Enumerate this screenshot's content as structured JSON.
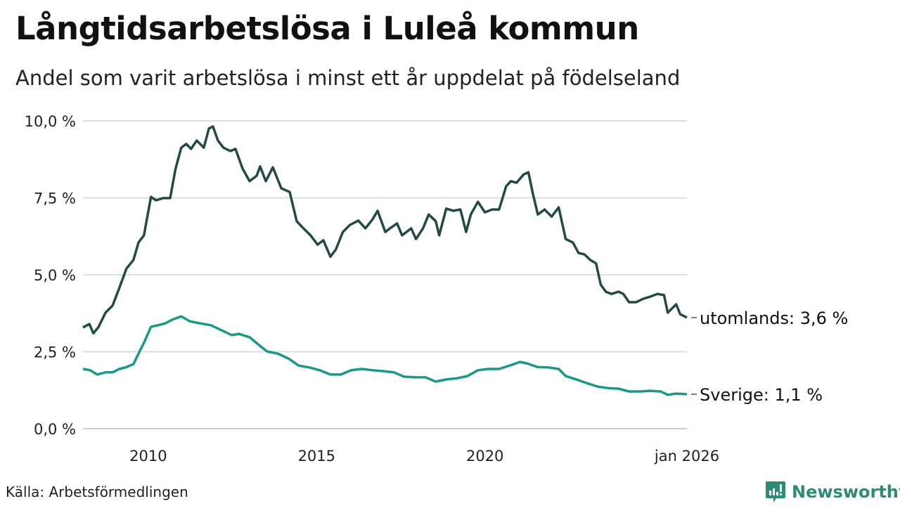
{
  "header": {
    "title": "Långtidsarbetslösa i Luleå kommun",
    "subtitle": "Andel som varit arbetslösa i minst ett år uppdelat på födelseland"
  },
  "footer": {
    "source": "Källa: Arbetsförmedlingen",
    "brand": "Newsworthy"
  },
  "chart_data": {
    "type": "line",
    "title": "Långtidsarbetslösa i Luleå kommun",
    "xlabel": "",
    "ylabel": "",
    "xlim": [
      2008.06,
      2026.0
    ],
    "ylim": [
      0,
      10
    ],
    "grid": true,
    "y_ticks": [
      0,
      2.5,
      5,
      7.5,
      10
    ],
    "y_tick_labels": [
      "0,0 %",
      "2,5 %",
      "5,0 %",
      "7,5 %",
      "10,0 %"
    ],
    "x_ticks": [
      2010,
      2015,
      2020,
      2026
    ],
    "x_tick_labels": [
      "2010",
      "2015",
      "2020",
      "jan 2026"
    ],
    "series": [
      {
        "name": "utomlands",
        "end_label": "utomlands: 3,6 %",
        "color": "#234a44",
        "points": [
          [
            2008.06,
            3.29
          ],
          [
            2008.25,
            3.4
          ],
          [
            2008.37,
            3.1
          ],
          [
            2008.52,
            3.3
          ],
          [
            2008.73,
            3.77
          ],
          [
            2008.94,
            4.0
          ],
          [
            2009.14,
            4.57
          ],
          [
            2009.35,
            5.2
          ],
          [
            2009.56,
            5.48
          ],
          [
            2009.71,
            6.05
          ],
          [
            2009.87,
            6.28
          ],
          [
            2010.08,
            7.53
          ],
          [
            2010.23,
            7.42
          ],
          [
            2010.44,
            7.49
          ],
          [
            2010.65,
            7.49
          ],
          [
            2010.81,
            8.45
          ],
          [
            2010.98,
            9.13
          ],
          [
            2011.13,
            9.25
          ],
          [
            2011.27,
            9.09
          ],
          [
            2011.44,
            9.36
          ],
          [
            2011.65,
            9.13
          ],
          [
            2011.8,
            9.75
          ],
          [
            2011.92,
            9.82
          ],
          [
            2012.07,
            9.36
          ],
          [
            2012.23,
            9.13
          ],
          [
            2012.44,
            9.02
          ],
          [
            2012.59,
            9.09
          ],
          [
            2012.8,
            8.45
          ],
          [
            2013.01,
            8.04
          ],
          [
            2013.22,
            8.22
          ],
          [
            2013.32,
            8.52
          ],
          [
            2013.49,
            8.04
          ],
          [
            2013.7,
            8.49
          ],
          [
            2013.95,
            7.81
          ],
          [
            2014.2,
            7.69
          ],
          [
            2014.41,
            6.74
          ],
          [
            2014.61,
            6.51
          ],
          [
            2014.82,
            6.28
          ],
          [
            2015.03,
            5.98
          ],
          [
            2015.2,
            6.12
          ],
          [
            2015.41,
            5.59
          ],
          [
            2015.57,
            5.82
          ],
          [
            2015.78,
            6.39
          ],
          [
            2015.99,
            6.62
          ],
          [
            2016.24,
            6.76
          ],
          [
            2016.45,
            6.51
          ],
          [
            2016.66,
            6.8
          ],
          [
            2016.81,
            7.08
          ],
          [
            2017.04,
            6.39
          ],
          [
            2017.18,
            6.51
          ],
          [
            2017.39,
            6.67
          ],
          [
            2017.54,
            6.28
          ],
          [
            2017.81,
            6.51
          ],
          [
            2017.95,
            6.16
          ],
          [
            2018.16,
            6.51
          ],
          [
            2018.33,
            6.96
          ],
          [
            2018.54,
            6.74
          ],
          [
            2018.64,
            6.28
          ],
          [
            2018.85,
            7.15
          ],
          [
            2019.06,
            7.08
          ],
          [
            2019.27,
            7.12
          ],
          [
            2019.44,
            6.39
          ],
          [
            2019.58,
            6.96
          ],
          [
            2019.79,
            7.37
          ],
          [
            2020.0,
            7.03
          ],
          [
            2020.21,
            7.12
          ],
          [
            2020.42,
            7.12
          ],
          [
            2020.63,
            7.88
          ],
          [
            2020.77,
            8.04
          ],
          [
            2020.94,
            7.99
          ],
          [
            2021.15,
            8.26
          ],
          [
            2021.29,
            8.33
          ],
          [
            2021.42,
            7.65
          ],
          [
            2021.57,
            6.96
          ],
          [
            2021.77,
            7.12
          ],
          [
            2021.98,
            6.89
          ],
          [
            2022.19,
            7.19
          ],
          [
            2022.4,
            6.16
          ],
          [
            2022.61,
            6.05
          ],
          [
            2022.78,
            5.71
          ],
          [
            2022.96,
            5.66
          ],
          [
            2023.13,
            5.48
          ],
          [
            2023.3,
            5.37
          ],
          [
            2023.44,
            4.68
          ],
          [
            2023.59,
            4.45
          ],
          [
            2023.76,
            4.38
          ],
          [
            2023.97,
            4.45
          ],
          [
            2024.11,
            4.38
          ],
          [
            2024.28,
            4.11
          ],
          [
            2024.49,
            4.11
          ],
          [
            2024.7,
            4.22
          ],
          [
            2024.91,
            4.29
          ],
          [
            2025.12,
            4.38
          ],
          [
            2025.32,
            4.34
          ],
          [
            2025.43,
            3.77
          ],
          [
            2025.68,
            4.04
          ],
          [
            2025.8,
            3.72
          ],
          [
            2026.0,
            3.61
          ]
        ]
      },
      {
        "name": "Sverige",
        "end_label": "Sverige: 1,1 %",
        "color": "#1a9988",
        "points": [
          [
            2008.06,
            1.94
          ],
          [
            2008.27,
            1.9
          ],
          [
            2008.48,
            1.76
          ],
          [
            2008.73,
            1.83
          ],
          [
            2008.94,
            1.83
          ],
          [
            2009.14,
            1.94
          ],
          [
            2009.35,
            2.0
          ],
          [
            2009.56,
            2.1
          ],
          [
            2009.71,
            2.44
          ],
          [
            2009.87,
            2.79
          ],
          [
            2010.08,
            3.31
          ],
          [
            2010.29,
            3.36
          ],
          [
            2010.5,
            3.42
          ],
          [
            2010.71,
            3.54
          ],
          [
            2010.98,
            3.65
          ],
          [
            2011.23,
            3.49
          ],
          [
            2011.55,
            3.42
          ],
          [
            2011.86,
            3.36
          ],
          [
            2012.17,
            3.2
          ],
          [
            2012.48,
            3.04
          ],
          [
            2012.69,
            3.08
          ],
          [
            2013.01,
            2.97
          ],
          [
            2013.32,
            2.69
          ],
          [
            2013.53,
            2.51
          ],
          [
            2013.84,
            2.44
          ],
          [
            2014.16,
            2.28
          ],
          [
            2014.47,
            2.05
          ],
          [
            2014.78,
            1.99
          ],
          [
            2015.09,
            1.9
          ],
          [
            2015.41,
            1.76
          ],
          [
            2015.72,
            1.76
          ],
          [
            2016.03,
            1.9
          ],
          [
            2016.35,
            1.94
          ],
          [
            2016.66,
            1.9
          ],
          [
            2016.97,
            1.87
          ],
          [
            2017.29,
            1.83
          ],
          [
            2017.6,
            1.69
          ],
          [
            2017.91,
            1.67
          ],
          [
            2018.23,
            1.67
          ],
          [
            2018.54,
            1.53
          ],
          [
            2018.85,
            1.6
          ],
          [
            2019.17,
            1.64
          ],
          [
            2019.48,
            1.71
          ],
          [
            2019.79,
            1.9
          ],
          [
            2020.1,
            1.94
          ],
          [
            2020.42,
            1.94
          ],
          [
            2020.73,
            2.05
          ],
          [
            2021.04,
            2.17
          ],
          [
            2021.25,
            2.12
          ],
          [
            2021.57,
            2.0
          ],
          [
            2021.88,
            1.99
          ],
          [
            2022.19,
            1.94
          ],
          [
            2022.4,
            1.71
          ],
          [
            2022.71,
            1.6
          ],
          [
            2023.03,
            1.48
          ],
          [
            2023.34,
            1.37
          ],
          [
            2023.65,
            1.32
          ],
          [
            2023.97,
            1.3
          ],
          [
            2024.28,
            1.21
          ],
          [
            2024.59,
            1.21
          ],
          [
            2024.91,
            1.23
          ],
          [
            2025.22,
            1.21
          ],
          [
            2025.43,
            1.1
          ],
          [
            2025.68,
            1.14
          ],
          [
            2026.0,
            1.12
          ]
        ]
      }
    ]
  }
}
